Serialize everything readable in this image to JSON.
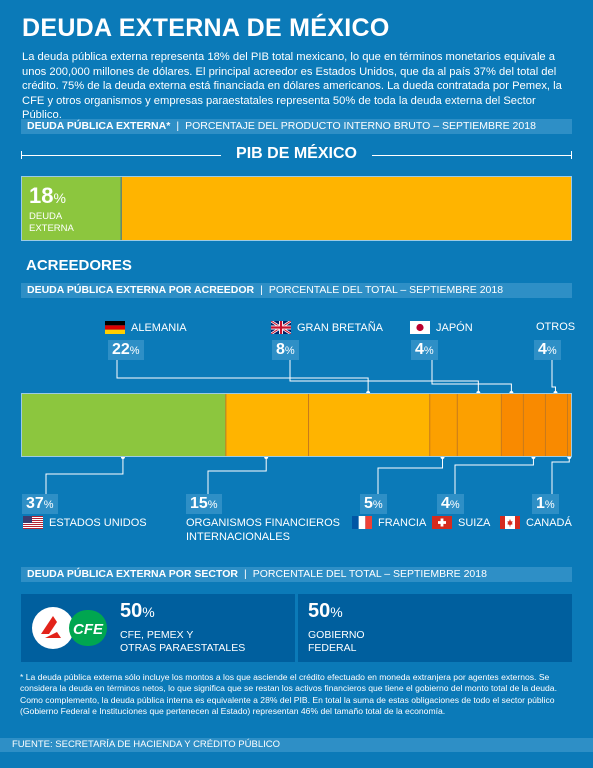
{
  "title": "DEUDA EXTERNA DE MÉXICO",
  "intro": "La deuda pública externa representa 18% del PIB total mexicano, lo que en términos monetarios equivale a unos 200,000 millones de dólares. El principal acreedor es Estados Unidos, que da al país 37% del total del crédito. 75% de la deuda externa está financiada en dólares americanos. La dueda contratada por Pemex, la CFE y otros organismos y empresas paraestatales representa 50% de toda la deuda externa del Sector Público.",
  "bands": {
    "pib": {
      "bold": "DEUDA PÚBLICA EXTERNA*",
      "sep": "|",
      "thin": "PORCENTAJE DEL PRODUCTO INTERNO BRUTO – SEPTIEMBRE 2018"
    },
    "acreedor": {
      "bold": "DEUDA PÚBLICA EXTERNA POR ACREEDOR",
      "sep": "|",
      "thin": "PORCENTALE DEL TOTAL – SEPTIEMBRE 2018"
    },
    "sector": {
      "bold": "DEUDA PÚBLICA EXTERNA POR SECTOR",
      "sep": "|",
      "thin": "PORCENTALE DEL TOTAL – SEPTIEMBRE 2018"
    }
  },
  "colors": {
    "background": "#0b7ab8",
    "band": "#2e8fc6",
    "green": "#8cc63e",
    "yellow": "#ffb400",
    "orange": "#f98a00",
    "dark_box": "#005f9e"
  },
  "pib_section": {
    "heading": "PIB DE MÉXICO",
    "value": "18",
    "unit": "%",
    "label": "DEUDA EXTERNA"
  },
  "acreedores_heading": "ACREEDORES",
  "sector_section": {
    "items": [
      {
        "value": "50",
        "unit": "%",
        "label_line1": "CFE, PEMEX Y",
        "label_line2": "OTRAS PARAESTATALES",
        "logo_text": "CFE"
      },
      {
        "value": "50",
        "unit": "%",
        "label_line1": "GOBIERNO",
        "label_line2": "FEDERAL"
      }
    ]
  },
  "footnote": "* La deuda pública externa sólo incluye los montos a los que asciende el crédito  efectuado en moneda extranjera por agentes externos. Se considera la deuda en términos netos, lo que significa que se restan los activos financieros que tiene el gobierno del monto total de la deuda. Como complemento, la deuda pública interna es equivalente a 28% del PIB. En total la suma de estas obligaciones de todo el sector público (Gobierno Federal e Instituciones que pertenecen al Estado) representan 46% del tamaño total de la economía.",
  "source": "FUENTE: SECRETARÍA DE HACIENDA Y CRÉDITO PÚBLICO",
  "chart_data": [
    {
      "type": "bar",
      "title": "PIB DE MÉXICO",
      "categories": [
        "DEUDA EXTERNA",
        ""
      ],
      "values": [
        18,
        82
      ],
      "colors": [
        "#8cc63e",
        "#ffb400"
      ],
      "ylim": [
        0,
        100
      ],
      "stacked": true
    },
    {
      "type": "bar",
      "title": "ACREEDORES",
      "stacked": true,
      "categories": [
        "ESTADOS UNIDOS",
        "ORGANISMOS FINANCIEROS INTERNACIONALES",
        "ALEMANIA",
        "FRANCIA",
        "GRAN BRETAÑA",
        "JAPÓN",
        "SUIZA",
        "OTROS",
        "CANADÁ"
      ],
      "values": [
        37,
        15,
        22,
        5,
        8,
        4,
        4,
        4,
        1
      ],
      "colors": [
        "#8cc63e",
        "#ffb400",
        "#ffb400",
        "#fca000",
        "#fca000",
        "#f98a00",
        "#f98a00",
        "#f98a00",
        "#f98a00"
      ],
      "ylim": [
        0,
        100
      ],
      "unit": "%"
    },
    {
      "type": "table",
      "title": "DEUDA PÚBLICA EXTERNA POR SECTOR",
      "categories": [
        "CFE, PEMEX Y OTRAS PARAESTATALES",
        "GOBIERNO FEDERAL"
      ],
      "values": [
        50,
        50
      ],
      "unit": "%"
    }
  ]
}
